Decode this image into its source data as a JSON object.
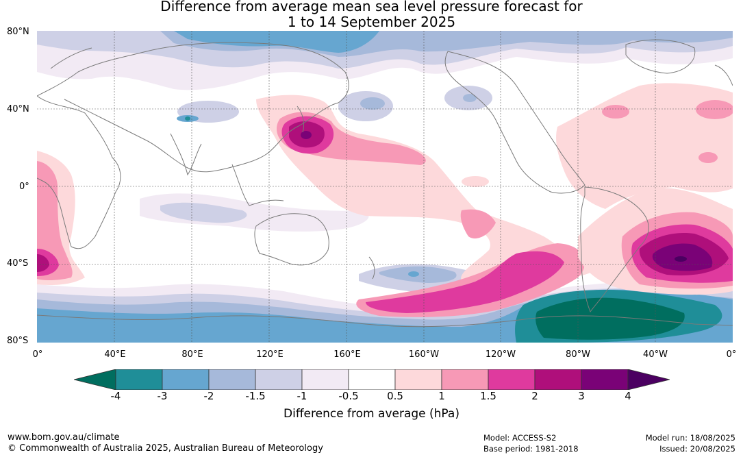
{
  "title_line1": "Difference from average mean sea level pressure forecast for",
  "title_line2": "1 to 14 September 2025",
  "lat_labels": [
    "80°N",
    "40°N",
    "0°",
    "40°S",
    "80°S"
  ],
  "lon_labels": [
    "0°",
    "40°E",
    "80°E",
    "120°E",
    "160°E",
    "160°W",
    "120°W",
    "80°W",
    "40°W",
    "0°"
  ],
  "colorbar": {
    "ticks": [
      "-4",
      "-3",
      "-2",
      "-1.5",
      "-1",
      "-0.5",
      "0.5",
      "1",
      "1.5",
      "2",
      "3",
      "4"
    ],
    "label": "Difference from average (hPa)",
    "colors": [
      "#006e5f",
      "#1f8e98",
      "#66a6d0",
      "#a6b9da",
      "#ced0e6",
      "#f2eaf4",
      "#ffffff",
      "#fdd9db",
      "#f799b6",
      "#df3a9e",
      "#af0f7b",
      "#7a0277",
      "#4b0061"
    ]
  },
  "footer": {
    "website": "www.bom.gov.au/climate",
    "copyright": "© Commonwealth of Australia 2025, Australian Bureau of Meteorology",
    "model": "Model: ACCESS-S2",
    "base_period": "Base period: 1981-2018",
    "model_run": "Model run: 18/08/2025",
    "issued": "Issued: 20/08/2025"
  }
}
